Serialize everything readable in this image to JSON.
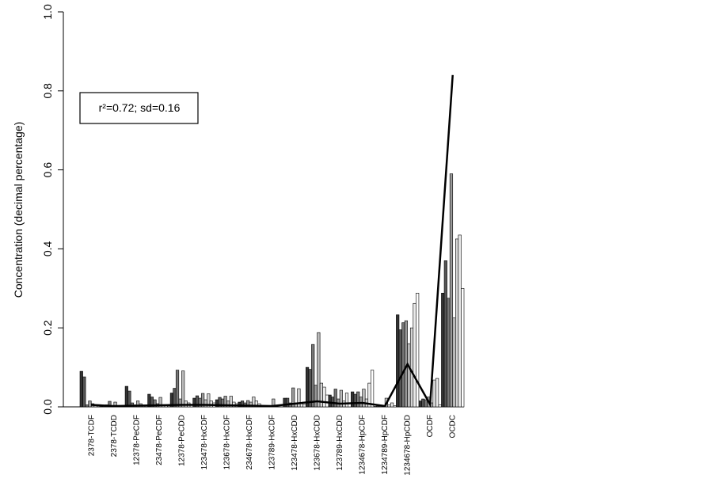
{
  "chart_data": {
    "type": "bar",
    "y_label": "Concentration (decimal percentage)",
    "annotation": "r²=0.72; sd=0.16",
    "categories": [
      "2378-TCDF",
      "2378-TCDD",
      "12378-PeCDF",
      "23478-PeCDF",
      "12378-PeCDD",
      "123478-HxCDF",
      "123678-HxCDF",
      "234678-HxCDF",
      "123789-HxCDF",
      "123478-HxCDD",
      "123678-HxCDD",
      "123789-HxCDD",
      "1234678-HpCDF",
      "1234789-HpCDF",
      "1234678-HpCDD",
      "OCDF",
      "OCDC"
    ],
    "ylim": [
      0,
      1
    ],
    "yticks": [
      {
        "value": 0,
        "label": "0.0"
      },
      0.2,
      0.4,
      0.6,
      0.8,
      {
        "value": 1,
        "label": "1.0"
      }
    ],
    "grid": false,
    "series": [
      {
        "color": "#333333",
        "values": [
          0.09,
          0.002,
          0.052,
          0.032,
          0.035,
          0.022,
          0.018,
          0.012,
          0.002,
          0.022,
          0.1,
          0.03,
          0.038,
          0.001,
          0.233,
          0.015,
          0.288
        ]
      },
      {
        "color": "#555555",
        "values": [
          0.076,
          0.005,
          0.04,
          0.025,
          0.047,
          0.028,
          0.024,
          0.015,
          0.001,
          0.022,
          0.095,
          0.025,
          0.032,
          0.002,
          0.195,
          0.02,
          0.37
        ]
      },
      {
        "color": "#777777",
        "values": [
          0.005,
          0.014,
          0.01,
          0.018,
          0.093,
          0.022,
          0.02,
          0.01,
          0.003,
          0.01,
          0.158,
          0.045,
          0.038,
          0.003,
          0.213,
          0.018,
          0.275
        ]
      },
      {
        "color": "#999999",
        "values": [
          0.015,
          0.002,
          0.005,
          0.008,
          0.02,
          0.034,
          0.027,
          0.016,
          0.001,
          0.048,
          0.055,
          0.02,
          0.025,
          0.001,
          0.218,
          0.025,
          0.59
        ]
      },
      {
        "color": "#bbbbbb",
        "values": [
          0.008,
          0.012,
          0.015,
          0.024,
          0.091,
          0.018,
          0.015,
          0.012,
          0.02,
          0.01,
          0.188,
          0.042,
          0.045,
          0.022,
          0.16,
          0.01,
          0.225
        ]
      },
      {
        "color": "#d4d4d4",
        "values": [
          0.003,
          0.001,
          0.008,
          0.005,
          0.015,
          0.033,
          0.027,
          0.025,
          0.001,
          0.046,
          0.06,
          0.015,
          0.02,
          0.005,
          0.2,
          0.068,
          0.425
        ]
      },
      {
        "color": "#eaeaea",
        "values": [
          0.002,
          0,
          0.003,
          0.004,
          0.01,
          0.015,
          0.012,
          0.015,
          0,
          0.008,
          0.05,
          0.035,
          0.06,
          0.01,
          0.262,
          0.072,
          0.435
        ]
      },
      {
        "color": "#ffffff",
        "values": [
          0.001,
          0,
          0.002,
          0.002,
          0.005,
          0.01,
          0.008,
          0.008,
          0,
          0.005,
          0.03,
          0.01,
          0.093,
          0.003,
          0.288,
          0.005,
          0.3
        ]
      }
    ],
    "line": {
      "color": "#000000",
      "values": [
        0.005,
        0.002,
        0.003,
        0.004,
        0.005,
        0.005,
        0.004,
        0.003,
        0.002,
        0.008,
        0.014,
        0.008,
        0.01,
        0.002,
        0.108,
        0.006,
        0.84
      ]
    }
  }
}
